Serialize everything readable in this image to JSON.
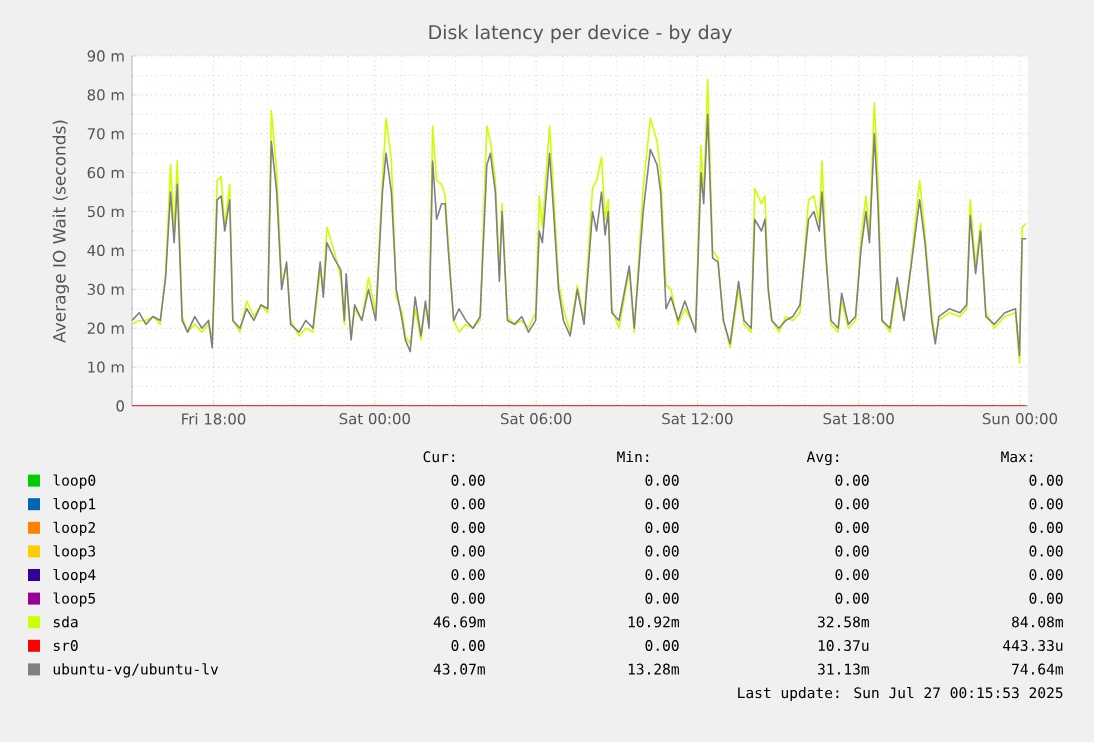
{
  "chart_data": {
    "type": "line",
    "title": "Disk latency per device - by day",
    "ylabel": "Average IO Wait (seconds)",
    "xlim": [
      "2025-07-25T14:58",
      "2025-07-27T00:18"
    ],
    "ylim": [
      0,
      90
    ],
    "xticks": [
      {
        "value": "2025-07-25T18:00",
        "label": "Fri 18:00"
      },
      {
        "value": "2025-07-26T00:00",
        "label": "Sat 00:00"
      },
      {
        "value": "2025-07-26T06:00",
        "label": "Sat 06:00"
      },
      {
        "value": "2025-07-26T12:00",
        "label": "Sat 12:00"
      },
      {
        "value": "2025-07-26T18:00",
        "label": "Sat 18:00"
      },
      {
        "value": "2025-07-27T00:00",
        "label": "Sun 00:00"
      }
    ],
    "yticks": [
      0,
      {
        "value": 10,
        "label": "10 m"
      },
      {
        "value": 20,
        "label": "20 m"
      },
      {
        "value": 30,
        "label": "30 m"
      },
      {
        "value": 40,
        "label": "40 m"
      },
      {
        "value": 50,
        "label": "50 m"
      },
      {
        "value": 60,
        "label": "60 m"
      },
      {
        "value": 70,
        "label": "70 m"
      },
      {
        "value": 80,
        "label": "80 m"
      },
      {
        "value": 90,
        "label": "90 m"
      }
    ],
    "grid": true,
    "legend": "bottom",
    "x": [
      "2025-07-25T14:58",
      "2025-07-25T15:14",
      "2025-07-25T15:29",
      "2025-07-25T15:45",
      "2025-07-25T16:01",
      "2025-07-25T16:13",
      "2025-07-25T16:24",
      "2025-07-25T16:32",
      "2025-07-25T16:39",
      "2025-07-25T16:50",
      "2025-07-25T17:02",
      "2025-07-25T17:18",
      "2025-07-25T17:34",
      "2025-07-25T17:49",
      "2025-07-25T17:57",
      "2025-07-25T18:08",
      "2025-07-25T18:17",
      "2025-07-25T18:25",
      "2025-07-25T18:36",
      "2025-07-25T18:43",
      "2025-07-25T18:59",
      "2025-07-25T19:14",
      "2025-07-25T19:30",
      "2025-07-25T19:46",
      "2025-07-25T20:01",
      "2025-07-25T20:09",
      "2025-07-25T20:21",
      "2025-07-25T20:32",
      "2025-07-25T20:43",
      "2025-07-25T20:52",
      "2025-07-25T21:11",
      "2025-07-25T21:26",
      "2025-07-25T21:42",
      "2025-07-25T21:58",
      "2025-07-25T22:05",
      "2025-07-25T22:13",
      "2025-07-25T22:29",
      "2025-07-25T22:44",
      "2025-07-25T22:52",
      "2025-07-25T22:56",
      "2025-07-25T23:07",
      "2025-07-25T23:15",
      "2025-07-25T23:31",
      "2025-07-25T23:46",
      "2025-07-26T00:02",
      "2025-07-26T00:17",
      "2025-07-26T00:25",
      "2025-07-26T00:37",
      "2025-07-26T00:48",
      "2025-07-26T01:01",
      "2025-07-26T01:08",
      "2025-07-26T01:19",
      "2025-07-26T01:30",
      "2025-07-26T01:43",
      "2025-07-26T01:53",
      "2025-07-26T02:01",
      "2025-07-26T02:09",
      "2025-07-26T02:18",
      "2025-07-26T02:29",
      "2025-07-26T02:37",
      "2025-07-26T02:44",
      "2025-07-26T02:56",
      "2025-07-26T03:08",
      "2025-07-26T03:23",
      "2025-07-26T03:39",
      "2025-07-26T03:55",
      "2025-07-26T04:10",
      "2025-07-26T04:18",
      "2025-07-26T04:29",
      "2025-07-26T04:38",
      "2025-07-26T04:44",
      "2025-07-26T04:56",
      "2025-07-26T05:12",
      "2025-07-26T05:28",
      "2025-07-26T05:43",
      "2025-07-26T05:59",
      "2025-07-26T06:07",
      "2025-07-26T06:14",
      "2025-07-26T06:30",
      "2025-07-26T06:39",
      "2025-07-26T06:50",
      "2025-07-26T07:01",
      "2025-07-26T07:16",
      "2025-07-26T07:32",
      "2025-07-26T07:47",
      "2025-07-26T08:06",
      "2025-07-26T08:15",
      "2025-07-26T08:26",
      "2025-07-26T08:34",
      "2025-07-26T08:41",
      "2025-07-26T08:49",
      "2025-07-26T09:05",
      "2025-07-26T09:28",
      "2025-07-26T09:39",
      "2025-07-26T09:59",
      "2025-07-26T10:15",
      "2025-07-26T10:30",
      "2025-07-26T10:38",
      "2025-07-26T10:50",
      "2025-07-26T11:01",
      "2025-07-26T11:17",
      "2025-07-26T11:32",
      "2025-07-26T11:56",
      "2025-07-26T12:08",
      "2025-07-26T12:14",
      "2025-07-26T12:23",
      "2025-07-26T12:34",
      "2025-07-26T12:46",
      "2025-07-26T12:58",
      "2025-07-26T13:13",
      "2025-07-26T13:32",
      "2025-07-26T13:44",
      "2025-07-26T14:00",
      "2025-07-26T14:08",
      "2025-07-26T14:23",
      "2025-07-26T14:31",
      "2025-07-26T14:38",
      "2025-07-26T14:46",
      "2025-07-26T15:02",
      "2025-07-26T15:17",
      "2025-07-26T15:33",
      "2025-07-26T15:49",
      "2025-07-26T16:08",
      "2025-07-26T16:20",
      "2025-07-26T16:32",
      "2025-07-26T16:38",
      "2025-07-26T16:47",
      "2025-07-26T16:58",
      "2025-07-26T17:14",
      "2025-07-26T17:22",
      "2025-07-26T17:37",
      "2025-07-26T17:53",
      "2025-07-26T18:05",
      "2025-07-26T18:16",
      "2025-07-26T18:24",
      "2025-07-26T18:35",
      "2025-07-26T18:43",
      "2025-07-26T18:52",
      "2025-07-26T19:10",
      "2025-07-26T19:26",
      "2025-07-26T19:41",
      "2025-07-26T19:57",
      "2025-07-26T20:16",
      "2025-07-26T20:28",
      "2025-07-26T20:43",
      "2025-07-26T20:51",
      "2025-07-26T20:59",
      "2025-07-26T21:22",
      "2025-07-26T21:46",
      "2025-07-26T22:01",
      "2025-07-26T22:09",
      "2025-07-26T22:21",
      "2025-07-26T22:32",
      "2025-07-26T22:44",
      "2025-07-26T23:03",
      "2025-07-26T23:26",
      "2025-07-26T23:50",
      "2025-07-26T23:59",
      "2025-07-27T00:05",
      "2025-07-27T00:14"
    ],
    "series": [
      {
        "name": "loop0",
        "color": "#00cc00",
        "values": [
          null,
          null,
          null,
          null,
          null,
          null,
          null,
          null,
          null,
          null,
          null,
          null,
          null,
          null,
          null,
          null,
          null,
          null,
          null,
          null,
          null,
          null,
          null,
          null,
          null,
          null,
          null,
          null,
          null,
          null,
          null,
          null,
          null,
          null,
          null,
          null,
          null,
          null,
          null,
          null,
          null,
          null,
          null,
          null,
          null,
          null,
          null,
          null,
          null,
          null,
          null,
          null,
          null,
          null,
          null,
          null,
          null,
          null,
          null,
          null,
          null,
          null,
          null,
          null,
          null,
          null,
          null,
          null,
          null,
          null,
          null,
          null,
          null,
          null,
          null,
          null,
          null,
          null,
          null,
          null,
          null,
          null,
          null,
          null,
          null,
          null,
          null,
          null,
          null,
          null,
          null,
          null,
          null,
          null,
          null,
          null,
          null,
          null,
          null,
          null,
          null,
          null,
          null,
          null,
          null,
          null,
          null,
          null,
          null,
          null,
          null,
          null,
          null,
          null,
          null,
          null,
          null,
          null,
          null,
          null,
          null,
          null,
          null,
          null,
          null,
          null,
          null,
          null,
          null,
          null,
          null,
          null,
          null,
          null,
          null,
          null,
          null,
          null,
          null,
          null,
          null,
          null,
          null,
          null,
          null,
          null,
          null,
          null,
          null,
          null,
          null,
          null,
          null,
          null,
          null,
          null,
          null,
          null,
          null,
          null
        ]
      },
      {
        "name": "loop1",
        "color": "#0066b3",
        "values": [
          null,
          null,
          null,
          null,
          null,
          null,
          null,
          null,
          null,
          null,
          null,
          null,
          null,
          null,
          null,
          null,
          null,
          null,
          null,
          null,
          null,
          null,
          null,
          null,
          null,
          null,
          null,
          null,
          null,
          null,
          null,
          null,
          null,
          null,
          null,
          null,
          null,
          null,
          null,
          null,
          null,
          null,
          null,
          null,
          null,
          null,
          null,
          null,
          null,
          null,
          null,
          null,
          null,
          null,
          null,
          null,
          null,
          null,
          null,
          null,
          null,
          null,
          null,
          null,
          null,
          null,
          null,
          null,
          null,
          null,
          null,
          null,
          null,
          null,
          null,
          null,
          null,
          null,
          null,
          null,
          null,
          null,
          null,
          null,
          null,
          null,
          null,
          null,
          null,
          null,
          null,
          null,
          null,
          null,
          null,
          null,
          null,
          null,
          null,
          null,
          null,
          null,
          null,
          null,
          null,
          null,
          null,
          null,
          null,
          null,
          null,
          null,
          null,
          null,
          null,
          null,
          null,
          null,
          null,
          null,
          null,
          null,
          null,
          null,
          null,
          null,
          null,
          null,
          null,
          null,
          null,
          null,
          null,
          null,
          null,
          null,
          null,
          null,
          null,
          null,
          null,
          null,
          null,
          null,
          null,
          null,
          null,
          null,
          null,
          null,
          null,
          null,
          null,
          null,
          null,
          null,
          null,
          null,
          null,
          null
        ]
      },
      {
        "name": "loop2",
        "color": "#ff8000",
        "values": [
          null,
          null,
          null,
          null,
          null,
          null,
          null,
          null,
          null,
          null,
          null,
          null,
          null,
          null,
          null,
          null,
          null,
          null,
          null,
          null,
          null,
          null,
          null,
          null,
          null,
          null,
          null,
          null,
          null,
          null,
          null,
          null,
          null,
          null,
          null,
          null,
          null,
          null,
          null,
          null,
          null,
          null,
          null,
          null,
          null,
          null,
          null,
          null,
          null,
          null,
          null,
          null,
          null,
          null,
          null,
          null,
          null,
          null,
          null,
          null,
          null,
          null,
          null,
          null,
          null,
          null,
          null,
          null,
          null,
          null,
          null,
          null,
          null,
          null,
          null,
          null,
          null,
          null,
          null,
          null,
          null,
          null,
          null,
          null,
          null,
          null,
          null,
          null,
          null,
          null,
          null,
          null,
          null,
          null,
          null,
          null,
          null,
          null,
          null,
          null,
          null,
          null,
          null,
          null,
          null,
          null,
          null,
          null,
          null,
          null,
          null,
          null,
          null,
          null,
          null,
          null,
          null,
          null,
          null,
          null,
          null,
          null,
          null,
          null,
          null,
          null,
          null,
          null,
          null,
          null,
          null,
          null,
          null,
          null,
          null,
          null,
          null,
          null,
          null,
          null,
          null,
          null,
          null,
          null,
          null,
          null,
          null,
          null,
          null,
          null,
          null,
          null,
          null,
          null,
          null,
          null,
          null,
          null,
          null,
          null
        ]
      },
      {
        "name": "loop3",
        "color": "#ffcc00",
        "values": [
          null,
          null,
          null,
          null,
          null,
          null,
          null,
          null,
          null,
          null,
          null,
          null,
          null,
          null,
          null,
          null,
          null,
          null,
          null,
          null,
          null,
          null,
          null,
          null,
          null,
          null,
          null,
          null,
          null,
          null,
          null,
          null,
          null,
          null,
          null,
          null,
          null,
          null,
          null,
          null,
          null,
          null,
          null,
          null,
          null,
          null,
          null,
          null,
          null,
          null,
          null,
          null,
          null,
          null,
          null,
          null,
          null,
          null,
          null,
          null,
          null,
          null,
          null,
          null,
          null,
          null,
          null,
          null,
          null,
          null,
          null,
          null,
          null,
          null,
          null,
          null,
          null,
          null,
          null,
          null,
          null,
          null,
          null,
          null,
          null,
          null,
          null,
          null,
          null,
          null,
          null,
          null,
          null,
          null,
          null,
          null,
          null,
          null,
          null,
          null,
          null,
          null,
          null,
          null,
          null,
          null,
          null,
          null,
          null,
          null,
          null,
          null,
          null,
          null,
          null,
          null,
          null,
          null,
          null,
          null,
          null,
          null,
          null,
          null,
          null,
          null,
          null,
          null,
          null,
          null,
          null,
          null,
          null,
          null,
          null,
          null,
          null,
          null,
          null,
          null,
          null,
          null,
          null,
          null,
          null,
          null,
          null,
          null,
          null,
          null,
          null,
          null,
          null,
          null,
          null,
          null,
          null,
          null,
          null,
          null
        ]
      },
      {
        "name": "loop4",
        "color": "#330099",
        "values": [
          null,
          null,
          null,
          null,
          null,
          null,
          null,
          null,
          null,
          null,
          null,
          null,
          null,
          null,
          null,
          null,
          null,
          null,
          null,
          null,
          null,
          null,
          null,
          null,
          null,
          null,
          null,
          null,
          null,
          null,
          null,
          null,
          null,
          null,
          null,
          null,
          null,
          null,
          null,
          null,
          null,
          null,
          null,
          null,
          null,
          null,
          null,
          null,
          null,
          null,
          null,
          null,
          null,
          null,
          null,
          null,
          null,
          null,
          null,
          null,
          null,
          null,
          null,
          null,
          null,
          null,
          null,
          null,
          null,
          null,
          null,
          null,
          null,
          null,
          null,
          null,
          null,
          null,
          null,
          null,
          null,
          null,
          null,
          null,
          null,
          null,
          null,
          null,
          null,
          null,
          null,
          null,
          null,
          null,
          null,
          null,
          null,
          null,
          null,
          null,
          null,
          null,
          null,
          null,
          null,
          null,
          null,
          null,
          null,
          null,
          null,
          null,
          null,
          null,
          null,
          null,
          null,
          null,
          null,
          null,
          null,
          null,
          null,
          null,
          null,
          null,
          null,
          null,
          null,
          null,
          null,
          null,
          null,
          null,
          null,
          null,
          null,
          null,
          null,
          null,
          null,
          null,
          null,
          null,
          null,
          null,
          null,
          null,
          null,
          null,
          null,
          null,
          null,
          null,
          null,
          null,
          null,
          null,
          null,
          null
        ]
      },
      {
        "name": "loop5",
        "color": "#990099",
        "values": [
          null,
          null,
          null,
          null,
          null,
          null,
          null,
          null,
          null,
          null,
          null,
          null,
          null,
          null,
          null,
          null,
          null,
          null,
          null,
          null,
          null,
          null,
          null,
          null,
          null,
          null,
          null,
          null,
          null,
          null,
          null,
          null,
          null,
          null,
          null,
          null,
          null,
          null,
          null,
          null,
          null,
          null,
          null,
          null,
          null,
          null,
          null,
          null,
          null,
          null,
          null,
          null,
          null,
          null,
          null,
          null,
          null,
          null,
          null,
          null,
          null,
          null,
          null,
          null,
          null,
          null,
          null,
          null,
          null,
          null,
          null,
          null,
          null,
          null,
          null,
          null,
          null,
          null,
          null,
          null,
          null,
          null,
          null,
          null,
          null,
          null,
          null,
          null,
          null,
          null,
          null,
          null,
          null,
          null,
          null,
          null,
          null,
          null,
          null,
          null,
          null,
          null,
          null,
          null,
          null,
          null,
          null,
          null,
          null,
          null,
          null,
          null,
          null,
          null,
          null,
          null,
          null,
          null,
          null,
          null,
          null,
          null,
          null,
          null,
          null,
          null,
          null,
          null,
          null,
          null,
          null,
          null,
          null,
          null,
          null,
          null,
          null,
          null,
          null,
          null,
          null,
          null,
          null,
          null,
          null,
          null,
          null,
          null,
          null,
          null,
          null,
          null,
          null,
          null,
          null,
          null,
          null,
          null,
          null,
          null
        ]
      },
      {
        "name": "sda",
        "color": "#ccff00",
        "values": [
          21,
          22,
          22,
          23,
          21,
          34,
          62,
          45,
          63,
          23,
          19,
          21,
          19,
          21,
          17,
          58,
          59,
          46,
          57,
          22,
          19,
          27,
          23,
          26,
          24,
          76,
          60,
          32,
          36,
          22,
          18,
          20,
          19,
          35,
          30,
          46,
          40,
          33,
          21,
          32,
          18,
          25,
          22,
          33,
          24,
          58,
          74,
          63,
          28,
          24,
          18,
          16,
          25,
          17,
          26,
          21,
          72,
          58,
          57,
          54,
          42,
          22,
          19,
          21,
          20,
          22,
          72,
          68,
          58,
          34,
          52,
          23,
          21,
          22,
          20,
          24,
          54,
          46,
          72,
          55,
          32,
          25,
          19,
          31,
          22,
          56,
          58,
          64,
          48,
          53,
          25,
          20,
          35,
          19,
          56,
          74,
          68,
          60,
          31,
          30,
          21,
          25,
          20,
          67,
          54,
          84,
          40,
          38,
          22,
          15,
          30,
          21,
          19,
          56,
          52,
          54,
          31,
          22,
          19,
          23,
          22,
          24,
          53,
          54,
          47,
          63,
          40,
          21,
          19,
          27,
          20,
          22,
          43,
          54,
          44,
          78,
          59,
          22,
          19,
          31,
          22,
          37,
          58,
          44,
          24,
          17,
          22,
          24,
          23,
          25,
          53,
          36,
          47,
          24,
          20,
          23,
          24,
          11,
          46,
          47
        ]
      },
      {
        "name": "sr0",
        "color": "#ff0000",
        "values": [
          0,
          0,
          0,
          0,
          0,
          0,
          0,
          0,
          0,
          0,
          0,
          0,
          0,
          0,
          0,
          0,
          0,
          0,
          0,
          0,
          0,
          0,
          0,
          0,
          0,
          0,
          0,
          0,
          0,
          0,
          0,
          0,
          0,
          0,
          0,
          0,
          0,
          0,
          0,
          0,
          0,
          0,
          0,
          0,
          0,
          0,
          0,
          0,
          0,
          0,
          0,
          0,
          0,
          0,
          0,
          0,
          0,
          0,
          0,
          0,
          0,
          0,
          0,
          0,
          0,
          0,
          0,
          0,
          0,
          0,
          0,
          0,
          0,
          0,
          0,
          0,
          0,
          0,
          0,
          0,
          0,
          0,
          0,
          0,
          0,
          0,
          0,
          0,
          0,
          0,
          0,
          0,
          0,
          0,
          0,
          0,
          0,
          0,
          0,
          0,
          0,
          0,
          0,
          0,
          0,
          0,
          0,
          0,
          0,
          0,
          0,
          0,
          0,
          0,
          0,
          0,
          0,
          0,
          0,
          0,
          0,
          0,
          0,
          0,
          0,
          0,
          0,
          0,
          0,
          0,
          0,
          0,
          0,
          0,
          0,
          0,
          0,
          0,
          0,
          0,
          0,
          0,
          0,
          0,
          0,
          0,
          0,
          0,
          0,
          0,
          0,
          0,
          0,
          0,
          0,
          0,
          0,
          0,
          0,
          0
        ]
      },
      {
        "name": "ubuntu-vg/ubuntu-lv",
        "color": "#808080",
        "values": [
          22,
          24,
          21,
          23,
          22,
          33,
          55,
          42,
          57,
          22,
          19,
          23,
          20,
          22,
          15,
          53,
          54,
          45,
          53,
          22,
          20,
          25,
          22,
          26,
          25,
          68,
          55,
          30,
          37,
          21,
          19,
          22,
          20,
          37,
          28,
          42,
          38,
          35,
          22,
          34,
          17,
          26,
          22,
          30,
          22,
          55,
          65,
          55,
          30,
          22,
          17,
          14,
          28,
          18,
          27,
          20,
          63,
          48,
          52,
          52,
          40,
          22,
          25,
          22,
          20,
          23,
          62,
          65,
          55,
          32,
          50,
          22,
          21,
          23,
          19,
          22,
          45,
          42,
          65,
          50,
          30,
          22,
          18,
          30,
          21,
          50,
          45,
          55,
          44,
          50,
          24,
          22,
          36,
          20,
          50,
          66,
          62,
          55,
          25,
          28,
          22,
          27,
          19,
          60,
          52,
          75,
          38,
          37,
          22,
          16,
          32,
          22,
          20,
          48,
          45,
          48,
          30,
          22,
          20,
          22,
          23,
          26,
          48,
          50,
          45,
          55,
          38,
          22,
          20,
          29,
          21,
          23,
          40,
          50,
          42,
          70,
          52,
          22,
          20,
          33,
          22,
          36,
          53,
          42,
          22,
          16,
          23,
          25,
          24,
          26,
          49,
          34,
          45,
          23,
          21,
          24,
          25,
          13,
          43,
          43
        ]
      }
    ],
    "annotations": [
      "Cur:",
      "Min:",
      "Avg:",
      "Max:",
      "0.00",
      "0.00",
      "0.00",
      "0.00",
      "0.00",
      "0.00",
      "0.00",
      "0.00",
      "0.00",
      "0.00",
      "0.00",
      "0.00",
      "0.00",
      "0.00",
      "0.00",
      "0.00",
      "0.00",
      "0.00",
      "0.00",
      "0.00",
      "0.00",
      "0.00",
      "0.00",
      "0.00",
      "46.69m",
      "10.92m",
      "32.58m",
      "84.08m",
      "0.00",
      "0.00",
      "10.37u",
      "443.33u",
      "43.07m",
      "13.28m",
      "31.13m",
      "74.64m",
      "Last update: Sun Jul 27 00:15:53 2025"
    ]
  }
}
